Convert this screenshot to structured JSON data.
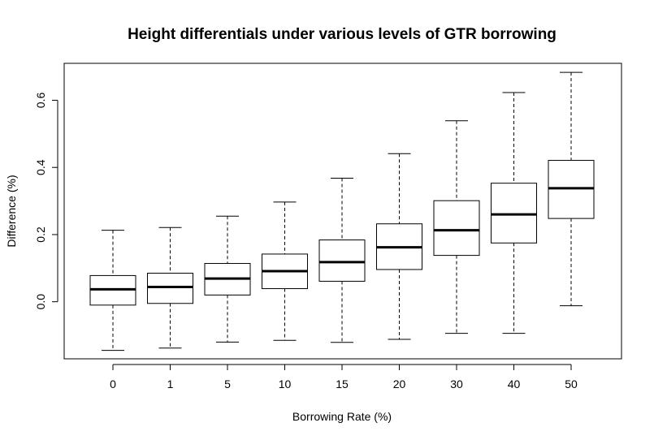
{
  "chart_data": {
    "type": "boxplot",
    "title": "Height differentials under various levels of GTR borrowing",
    "xlabel": "Borrowing Rate (%)",
    "ylabel": "Difference (%)",
    "categories": [
      "0",
      "1",
      "5",
      "10",
      "15",
      "20",
      "30",
      "40",
      "50"
    ],
    "y_ticks": [
      0.0,
      0.2,
      0.4,
      0.6
    ],
    "y_tick_labels": [
      "0.0",
      "0.2",
      "0.4",
      "0.6"
    ],
    "ylim": [
      -0.17,
      0.71
    ],
    "grid": false,
    "boxes": [
      {
        "category": "0",
        "whisker_low": -0.145,
        "q1": -0.01,
        "median": 0.037,
        "q3": 0.078,
        "whisker_high": 0.213
      },
      {
        "category": "1",
        "whisker_low": -0.138,
        "q1": -0.005,
        "median": 0.044,
        "q3": 0.085,
        "whisker_high": 0.221
      },
      {
        "category": "5",
        "whisker_low": -0.12,
        "q1": 0.02,
        "median": 0.069,
        "q3": 0.114,
        "whisker_high": 0.255
      },
      {
        "category": "10",
        "whisker_low": -0.115,
        "q1": 0.039,
        "median": 0.091,
        "q3": 0.142,
        "whisker_high": 0.297
      },
      {
        "category": "15",
        "whisker_low": -0.121,
        "q1": 0.061,
        "median": 0.118,
        "q3": 0.184,
        "whisker_high": 0.368
      },
      {
        "category": "20",
        "whisker_low": -0.112,
        "q1": 0.096,
        "median": 0.162,
        "q3": 0.232,
        "whisker_high": 0.441
      },
      {
        "category": "30",
        "whisker_low": -0.094,
        "q1": 0.138,
        "median": 0.213,
        "q3": 0.301,
        "whisker_high": 0.539
      },
      {
        "category": "40",
        "whisker_low": -0.094,
        "q1": 0.175,
        "median": 0.26,
        "q3": 0.353,
        "whisker_high": 0.623
      },
      {
        "category": "50",
        "whisker_low": -0.012,
        "q1": 0.248,
        "median": 0.338,
        "q3": 0.421,
        "whisker_high": 0.683
      }
    ]
  }
}
